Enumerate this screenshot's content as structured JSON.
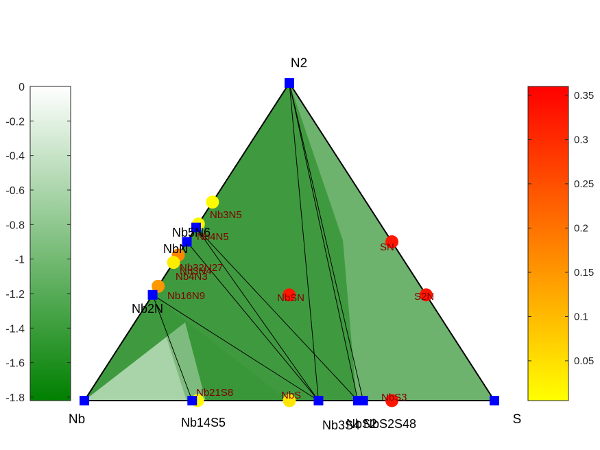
{
  "chart_data": {
    "type": "scatter",
    "title": "",
    "xlabel": "",
    "ylabel": "",
    "corners": [
      "Nb",
      "N2",
      "S"
    ],
    "left_colorbar": {
      "ylim": [
        -1.82,
        0
      ],
      "tick_labels": [
        "0",
        "-0.2",
        "-0.4",
        "-0.6",
        "-0.8",
        "-1",
        "-1.2",
        "-1.4",
        "-1.6",
        "-1.8"
      ],
      "tick_values": [
        0,
        -0.2,
        -0.4,
        -0.6,
        -0.8,
        -1.0,
        -1.2,
        -1.4,
        -1.6,
        -1.8
      ],
      "color_low": "#008000",
      "color_high": "#ffffff"
    },
    "right_colorbar": {
      "ylim": [
        0.005,
        0.36
      ],
      "tick_labels": [
        "0.35",
        "0.3",
        "0.25",
        "0.2",
        "0.15",
        "0.1",
        "0.05"
      ],
      "tick_values": [
        0.35,
        0.3,
        0.25,
        0.2,
        0.15,
        0.1,
        0.05
      ],
      "color_low": "#ffff00",
      "color_high": "#ff0000"
    },
    "stable_phases": [
      {
        "name": "Nb",
        "x_N": 0,
        "x_S": 0,
        "energy": 0
      },
      {
        "name": "N2",
        "x_N": 1,
        "x_S": 0,
        "energy": 0
      },
      {
        "name": "S",
        "x_N": 0,
        "x_S": 1,
        "energy": 0
      },
      {
        "name": "Nb5N6",
        "x_N": 0.545,
        "x_S": 0,
        "energy": -0.9
      },
      {
        "name": "NbN",
        "x_N": 0.5,
        "x_S": 0,
        "energy": -1.0
      },
      {
        "name": "Nb2N",
        "x_N": 0.333,
        "x_S": 0,
        "energy": -1.21
      },
      {
        "name": "Nb14S5",
        "x_N": 0,
        "x_S": 0.263,
        "energy": -1.82
      },
      {
        "name": "Nb3S4",
        "x_N": 0,
        "x_S": 0.571,
        "energy": -1.82
      },
      {
        "name": "NbS2",
        "x_N": 0,
        "x_S": 0.667,
        "energy": -1.82
      },
      {
        "name": "Nb3S4 / NbS2 / S48 (overlap)",
        "x_N": 0,
        "x_S": 0.68,
        "energy": -1.82
      }
    ],
    "stable_labels": [
      "Nb5N6",
      "NbN",
      "Nb2N",
      "Nb14S5",
      "Nb3S4",
      "NbS2",
      "NbS2S48"
    ],
    "unstable_phases": [
      {
        "name": "Nb3N5",
        "x_N": 0.625,
        "x_S": 0,
        "e_above_hull": 0.01
      },
      {
        "name": "Nb4N5",
        "x_N": 0.556,
        "x_S": 0,
        "e_above_hull": 0.02
      },
      {
        "name": "Nb32N27",
        "x_N": 0.458,
        "x_S": 0,
        "e_above_hull": 0.17
      },
      {
        "name": "Nb3N4 / Nb4N3 (overlap)",
        "x_N": 0.435,
        "x_S": 0,
        "e_above_hull": 0.03
      },
      {
        "name": "Nb16N9",
        "x_N": 0.36,
        "x_S": 0,
        "e_above_hull": 0.15
      },
      {
        "name": "Nb21S8",
        "x_N": 0,
        "x_S": 0.276,
        "e_above_hull": 0.01
      },
      {
        "name": "NbS",
        "x_N": 0,
        "x_S": 0.5,
        "e_above_hull": 0.04
      },
      {
        "name": "NbS3",
        "x_N": 0,
        "x_S": 0.75,
        "e_above_hull": 0.33
      },
      {
        "name": "NbSN",
        "x_N": 0.333,
        "x_S": 0.333,
        "e_above_hull": 0.33
      },
      {
        "name": "SN",
        "x_N": 0.5,
        "x_S": 0.5,
        "e_above_hull": 0.33
      },
      {
        "name": "S2N",
        "x_N": 0.333,
        "x_S": 0.667,
        "e_above_hull": 0.33
      }
    ],
    "unstable_labels": [
      "Nb3N5",
      "Nb4N5",
      "Nb32N27",
      "Nb3N4",
      "Nb4N3",
      "Nb16N9",
      "Nb21S8",
      "NbS",
      "NbS3",
      "NbSN",
      "SN",
      "S2N"
    ],
    "tie_lines": [
      [
        "N2",
        "Nb3S4"
      ],
      [
        "N2",
        "NbS2"
      ],
      [
        "N2",
        "S48"
      ],
      [
        "Nb5N6",
        "Nb3S4"
      ],
      [
        "Nb5N6",
        "NbS2"
      ],
      [
        "NbN",
        "Nb3S4"
      ],
      [
        "Nb2N",
        "Nb14S5"
      ],
      [
        "Nb2N",
        "Nb3S4"
      ]
    ],
    "grid": false,
    "legend": "none"
  }
}
